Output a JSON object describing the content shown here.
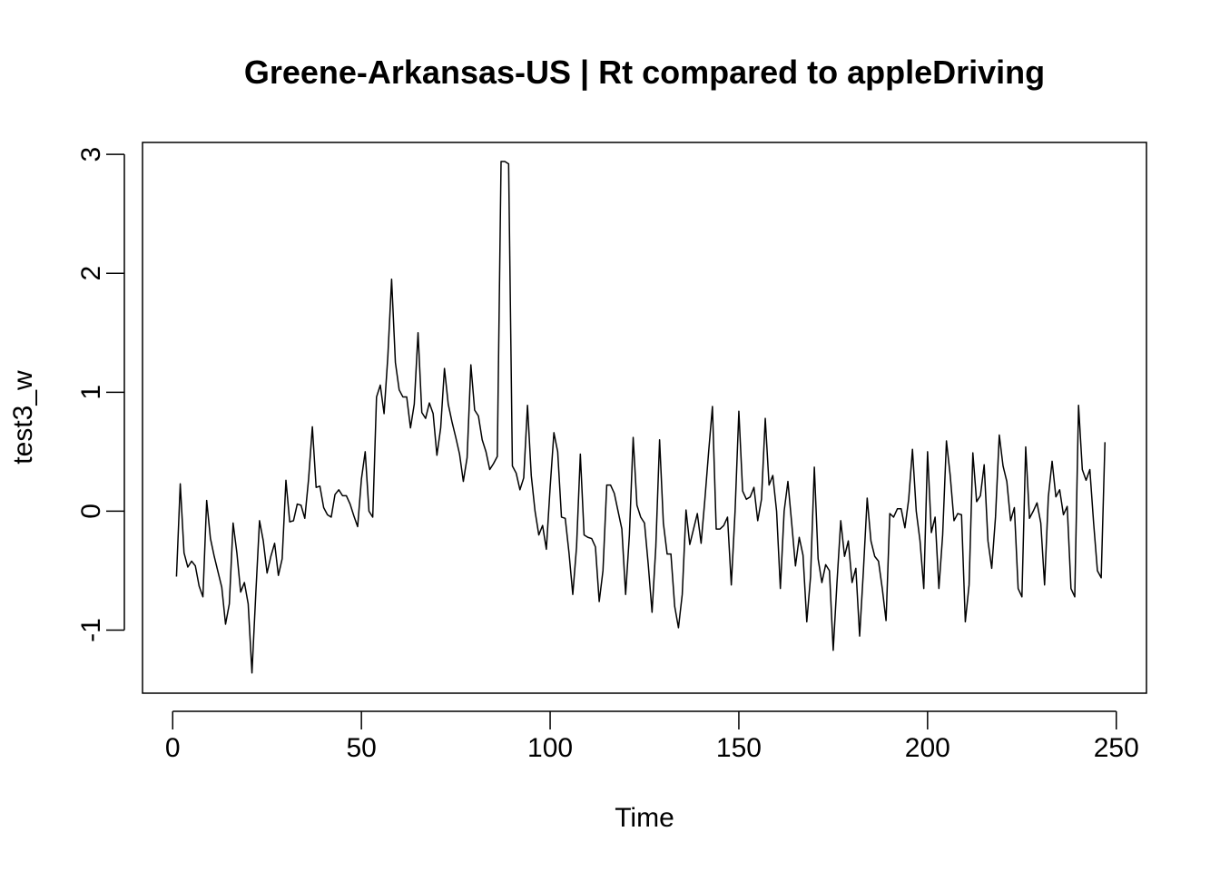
{
  "chart_data": {
    "type": "line",
    "title": "Greene-Arkansas-US | Rt compared to appleDriving",
    "xlabel": "Time",
    "ylabel": "test3_w",
    "xlim": [
      -8,
      258
    ],
    "ylim": [
      -1.53,
      3.1
    ],
    "xticks": [
      0,
      50,
      100,
      150,
      200,
      250
    ],
    "yticks": [
      -1,
      0,
      1,
      2,
      3
    ],
    "grid": false,
    "x_start": 1,
    "series": [
      {
        "values": [
          -0.55,
          0.23,
          -0.35,
          -0.47,
          -0.42,
          -0.46,
          -0.63,
          -0.72,
          0.09,
          -0.23,
          -0.38,
          -0.51,
          -0.64,
          -0.95,
          -0.78,
          -0.1,
          -0.35,
          -0.68,
          -0.6,
          -0.78,
          -1.36,
          -0.7,
          -0.08,
          -0.25,
          -0.52,
          -0.38,
          -0.27,
          -0.54,
          -0.4,
          0.26,
          -0.09,
          -0.08,
          0.06,
          0.05,
          -0.06,
          0.27,
          0.71,
          0.2,
          0.21,
          0.03,
          -0.03,
          -0.05,
          0.14,
          0.18,
          0.13,
          0.13,
          0.06,
          -0.04,
          -0.13,
          0.27,
          0.5,
          0.0,
          -0.05,
          0.96,
          1.06,
          0.82,
          1.3,
          1.95,
          1.25,
          1.02,
          0.96,
          0.96,
          0.7,
          0.9,
          1.5,
          0.83,
          0.78,
          0.91,
          0.82,
          0.47,
          0.7,
          1.2,
          0.9,
          0.75,
          0.62,
          0.48,
          0.25,
          0.45,
          1.23,
          0.85,
          0.8,
          0.6,
          0.5,
          0.35,
          0.4,
          0.46,
          2.94,
          2.94,
          2.92,
          0.38,
          0.32,
          0.18,
          0.28,
          0.89,
          0.3,
          0.0,
          -0.2,
          -0.12,
          -0.32,
          0.2,
          0.66,
          0.5,
          -0.05,
          -0.06,
          -0.35,
          -0.7,
          -0.3,
          0.48,
          -0.2,
          -0.22,
          -0.23,
          -0.3,
          -0.76,
          -0.5,
          0.22,
          0.22,
          0.15,
          0.0,
          -0.15,
          -0.7,
          -0.2,
          0.62,
          0.05,
          -0.05,
          -0.1,
          -0.45,
          -0.85,
          -0.3,
          0.6,
          -0.1,
          -0.36,
          -0.36,
          -0.8,
          -0.98,
          -0.7,
          0.01,
          -0.28,
          -0.15,
          -0.02,
          -0.27,
          0.1,
          0.5,
          0.88,
          -0.15,
          -0.15,
          -0.12,
          -0.05,
          -0.62,
          0.0,
          0.84,
          0.17,
          0.1,
          0.12,
          0.2,
          -0.08,
          0.1,
          0.78,
          0.22,
          0.3,
          0.0,
          -0.65,
          0.0,
          0.25,
          -0.1,
          -0.46,
          -0.22,
          -0.37,
          -0.93,
          -0.55,
          0.37,
          -0.4,
          -0.6,
          -0.45,
          -0.5,
          -1.17,
          -0.6,
          -0.08,
          -0.38,
          -0.25,
          -0.6,
          -0.48,
          -1.05,
          -0.5,
          0.11,
          -0.25,
          -0.38,
          -0.42,
          -0.65,
          -0.92,
          -0.02,
          -0.05,
          0.02,
          0.02,
          -0.14,
          0.1,
          0.52,
          0.0,
          -0.25,
          -0.65,
          0.5,
          -0.18,
          -0.05,
          -0.65,
          -0.2,
          0.59,
          0.3,
          -0.08,
          -0.02,
          -0.03,
          -0.93,
          -0.62,
          0.49,
          0.08,
          0.13,
          0.39,
          -0.25,
          -0.48,
          -0.05,
          0.64,
          0.38,
          0.25,
          -0.08,
          0.03,
          -0.65,
          -0.72,
          0.54,
          -0.06,
          0.0,
          0.07,
          -0.1,
          -0.62,
          0.12,
          0.42,
          0.12,
          0.18,
          -0.03,
          0.04,
          -0.65,
          -0.72,
          0.89,
          0.35,
          0.26,
          0.35,
          -0.1,
          -0.5,
          -0.56,
          0.58
        ]
      }
    ]
  }
}
